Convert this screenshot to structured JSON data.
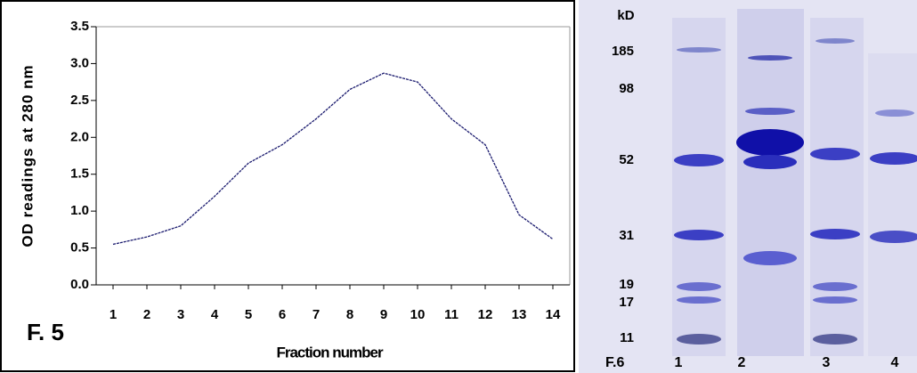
{
  "chart_data": {
    "type": "line",
    "annotation": "F. 5",
    "x_label": "Fraction number",
    "y_label": "OD readings at 280 nm",
    "x": [
      1,
      2,
      3,
      4,
      5,
      6,
      7,
      8,
      9,
      10,
      11,
      12,
      13,
      14
    ],
    "values": [
      0.55,
      0.65,
      0.8,
      1.2,
      1.65,
      1.9,
      2.25,
      2.65,
      2.87,
      2.75,
      2.25,
      1.9,
      0.95,
      0.62
    ],
    "color": "#1a1a6e",
    "xlim": [
      0.5,
      14.5
    ],
    "xticks": [
      1,
      2,
      3,
      4,
      5,
      6,
      7,
      8,
      9,
      10,
      11,
      12,
      13,
      14
    ],
    "ylim": [
      0,
      3.5
    ],
    "yticks": [
      {
        "value": 0,
        "label": "0.0"
      },
      {
        "value": 0.5,
        "label": "0.5"
      },
      {
        "value": 1,
        "label": "1.0"
      },
      {
        "value": 1.5,
        "label": "1.5"
      },
      {
        "value": 2,
        "label": "2.0"
      },
      {
        "value": 2.5,
        "label": "2.5"
      },
      {
        "value": 3,
        "label": "3.0"
      },
      {
        "value": 3.5,
        "label": "3.5"
      }
    ],
    "grid": false
  },
  "gel": {
    "figure_label": "F.6",
    "unit": "kD",
    "markers": [
      "185",
      "98",
      "52",
      "31",
      "19",
      "17",
      "11"
    ],
    "lanes": [
      "1",
      "2",
      "3",
      "4"
    ]
  }
}
